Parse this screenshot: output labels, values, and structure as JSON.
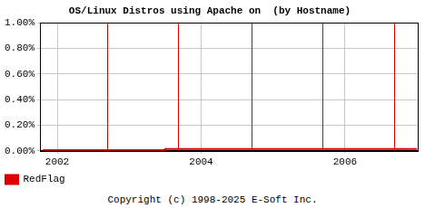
{
  "chart_data": {
    "type": "line",
    "title": "OS/Linux Distros using Apache on  (by Hostname)",
    "footer": "Copyright (c) 1998-2025 E-Soft Inc.",
    "x": [
      2001.8,
      2003.5,
      2003.5,
      2007.0
    ],
    "series": [
      {
        "name": "RedFlag",
        "color": "#dd0000",
        "values": [
          0.005,
          0.005,
          0.015,
          0.015
        ]
      }
    ],
    "xlim": [
      2001.76,
      2007.01
    ],
    "xticks": [
      2002,
      2004,
      2006
    ],
    "ylim": [
      0,
      1
    ],
    "yticks": [
      {
        "value": 0,
        "label": "0.00%"
      },
      {
        "value": 0.2,
        "label": "0.20%"
      },
      {
        "value": 0.4,
        "label": "0.40%"
      },
      {
        "value": 0.6,
        "label": "0.60%"
      },
      {
        "value": 0.8,
        "label": "0.80%"
      },
      {
        "value": 1,
        "label": "1.00%"
      }
    ],
    "vertical_lines": [
      2002.7,
      2003.68,
      2004.7,
      2005.68,
      2006.68
    ],
    "grid": true,
    "legend": "bottom-left"
  }
}
